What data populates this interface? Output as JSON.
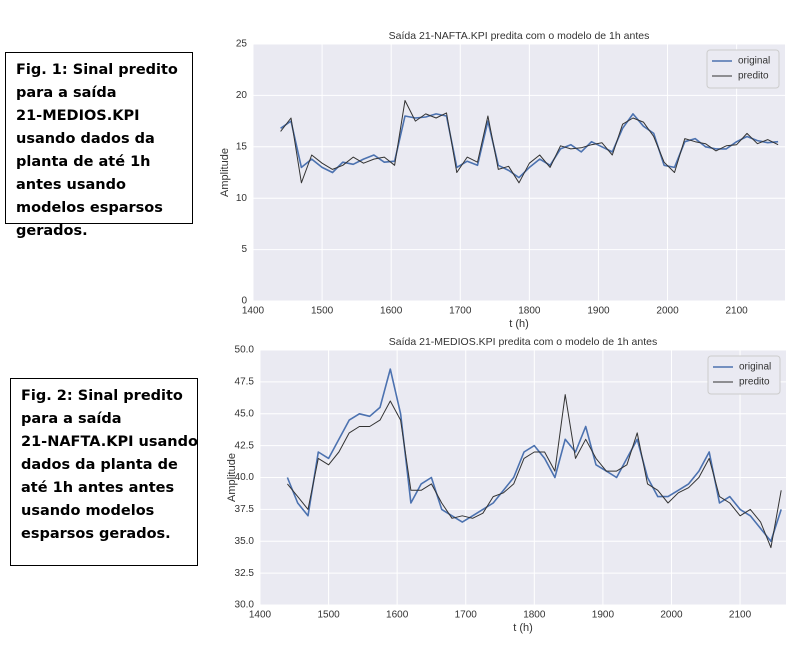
{
  "captions": [
    {
      "lines": [
        "Fig. 1: Sinal predito",
        "para a saída",
        "21-MEDIOS.KPI",
        "usando dados da",
        "planta de até 1h",
        "antes usando",
        "modelos esparsos",
        "gerados."
      ]
    },
    {
      "lines": [
        "Fig. 2: Sinal predito",
        "para a saída",
        "21-NAFTA.KPI usando",
        "dados da planta de",
        "até 1h antes antes",
        "usando modelos",
        "esparsos gerados."
      ]
    }
  ],
  "chart_data": [
    {
      "type": "line",
      "title": "Saída 21-NAFTA.KPI predita com o modelo de 1h antes",
      "x_label": "t (h)",
      "y_label": "Amplitude",
      "grid": true,
      "legend": "upper right",
      "xlim": [
        1400,
        2170
      ],
      "xticks": [
        1400,
        1500,
        1600,
        1700,
        1800,
        1900,
        2000,
        2100
      ],
      "ylim": [
        0,
        25
      ],
      "yticks": [
        0,
        5,
        10,
        15,
        20,
        25
      ],
      "x": [
        1440,
        1455,
        1470,
        1485,
        1500,
        1515,
        1530,
        1545,
        1560,
        1575,
        1590,
        1605,
        1620,
        1635,
        1650,
        1665,
        1680,
        1695,
        1710,
        1725,
        1740,
        1755,
        1770,
        1785,
        1800,
        1815,
        1830,
        1845,
        1860,
        1875,
        1890,
        1905,
        1920,
        1935,
        1950,
        1965,
        1980,
        1995,
        2010,
        2025,
        2040,
        2055,
        2070,
        2085,
        2100,
        2115,
        2130,
        2145,
        2160
      ],
      "series": [
        {
          "name": "original",
          "color": "#4c72b0",
          "values": [
            16.8,
            17.5,
            13.0,
            13.8,
            13.0,
            12.5,
            13.5,
            13.3,
            13.8,
            14.2,
            13.5,
            13.6,
            18.0,
            17.8,
            17.9,
            18.2,
            18.0,
            13.0,
            13.6,
            13.2,
            17.5,
            13.2,
            12.7,
            12.0,
            13.0,
            13.8,
            13.2,
            14.8,
            15.2,
            14.5,
            15.5,
            15.0,
            14.5,
            16.8,
            18.2,
            17.0,
            16.3,
            13.2,
            13.0,
            15.5,
            15.8,
            15.0,
            14.8,
            14.8,
            15.5,
            16.0,
            15.6,
            15.4,
            15.5
          ]
        },
        {
          "name": "predito",
          "color": "#333333",
          "values": [
            16.5,
            17.8,
            11.5,
            14.2,
            13.4,
            12.8,
            13.2,
            14.0,
            13.4,
            13.8,
            14.0,
            13.2,
            19.5,
            17.5,
            18.2,
            17.8,
            18.3,
            12.5,
            14.0,
            13.5,
            18.0,
            12.8,
            13.1,
            11.5,
            13.4,
            14.2,
            13.0,
            15.1,
            14.8,
            14.9,
            15.2,
            15.4,
            14.2,
            17.2,
            17.8,
            17.4,
            16.0,
            13.5,
            12.5,
            15.8,
            15.5,
            15.3,
            14.6,
            15.1,
            15.2,
            16.3,
            15.3,
            15.7,
            15.2
          ]
        }
      ]
    },
    {
      "type": "line",
      "title": "Saída 21-MEDIOS.KPI predita com o modelo de 1h antes",
      "x_label": "t (h)",
      "y_label": "Amplitude",
      "grid": true,
      "legend": "upper right",
      "xlim": [
        1400,
        2167
      ],
      "xticks": [
        1400,
        1500,
        1600,
        1700,
        1800,
        1900,
        2000,
        2100
      ],
      "ylim": [
        30,
        50
      ],
      "yticks": [
        {
          "value": 30,
          "label": "30.0"
        },
        {
          "value": 32.5,
          "label": "32.5"
        },
        {
          "value": 35,
          "label": "35.0"
        },
        {
          "value": 37.5,
          "label": "37.5"
        },
        {
          "value": 40,
          "label": "40.0"
        },
        {
          "value": 42.5,
          "label": "42.5"
        },
        {
          "value": 45,
          "label": "45.0"
        },
        {
          "value": 47.5,
          "label": "47.5"
        },
        {
          "value": 50,
          "label": "50.0"
        }
      ],
      "x": [
        1440,
        1455,
        1470,
        1485,
        1500,
        1515,
        1530,
        1545,
        1560,
        1575,
        1590,
        1605,
        1620,
        1635,
        1650,
        1665,
        1680,
        1695,
        1710,
        1725,
        1740,
        1755,
        1770,
        1785,
        1800,
        1815,
        1830,
        1845,
        1860,
        1875,
        1890,
        1905,
        1920,
        1935,
        1950,
        1965,
        1980,
        1995,
        2010,
        2025,
        2040,
        2055,
        2070,
        2085,
        2100,
        2115,
        2130,
        2145,
        2160
      ],
      "series": [
        {
          "name": "original",
          "color": "#4c72b0",
          "values": [
            40.0,
            38.0,
            37.0,
            42.0,
            41.5,
            43.0,
            44.5,
            45.0,
            44.8,
            45.5,
            48.5,
            45.0,
            38.0,
            39.5,
            40.0,
            37.5,
            37.0,
            36.5,
            37.0,
            37.5,
            38.0,
            39.0,
            40.0,
            42.0,
            42.5,
            41.5,
            40.0,
            43.0,
            42.0,
            44.0,
            41.0,
            40.5,
            40.0,
            41.5,
            43.0,
            40.0,
            38.5,
            38.5,
            39.0,
            39.5,
            40.5,
            42.0,
            38.0,
            38.5,
            37.5,
            37.0,
            36.0,
            35.0,
            37.5
          ]
        },
        {
          "name": "predito",
          "color": "#333333",
          "values": [
            39.5,
            38.5,
            37.5,
            41.5,
            41.0,
            42.0,
            43.5,
            44.0,
            44.0,
            44.5,
            46.0,
            44.5,
            39.0,
            39.0,
            39.5,
            38.0,
            36.8,
            37.0,
            36.8,
            37.2,
            38.5,
            38.8,
            39.5,
            41.5,
            42.0,
            42.0,
            40.5,
            46.5,
            41.5,
            43.0,
            41.5,
            40.5,
            40.5,
            41.0,
            43.5,
            39.5,
            39.0,
            38.0,
            38.8,
            39.2,
            40.0,
            41.5,
            38.5,
            38.0,
            37.0,
            37.5,
            36.5,
            34.5,
            39.0
          ]
        }
      ]
    }
  ]
}
